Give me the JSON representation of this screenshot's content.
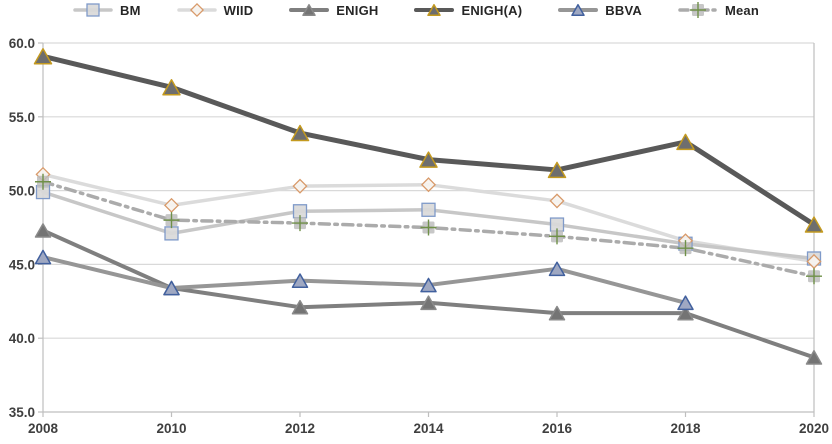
{
  "chart_data": {
    "type": "line",
    "title": "",
    "xlabel": "",
    "ylabel": "",
    "x_categories": [
      "2008",
      "2010",
      "2012",
      "2014",
      "2016",
      "2018",
      "2020"
    ],
    "ylim": [
      35,
      60
    ],
    "ytick_step": 5,
    "ytick_labels": [
      "60.0",
      "55.0",
      "50.0",
      "45.0",
      "40.0",
      "35.0"
    ],
    "grid": true,
    "legend_position": "top",
    "axis_text_color": "#3f3f3f",
    "gridline_color": "#d9d9d9",
    "axis_line_color": "#bfbfbf",
    "series": [
      {
        "name": "BM",
        "values": [
          49.9,
          47.1,
          48.6,
          48.7,
          47.7,
          46.4,
          45.4
        ],
        "line_color": "#c7c7c7",
        "line_width": 3.5,
        "dash": false,
        "marker": "square",
        "marker_fill": "#d9d9d9",
        "marker_stroke": "#7f9ac9",
        "marker_size": 13
      },
      {
        "name": "WIID",
        "values": [
          51.1,
          49.0,
          50.3,
          50.4,
          49.3,
          46.6,
          45.2
        ],
        "line_color": "#dbdbdb",
        "line_width": 3.5,
        "dash": false,
        "marker": "diamond",
        "marker_fill": "#f7f4f0",
        "marker_stroke": "#d89a6a",
        "marker_size": 13
      },
      {
        "name": "ENIGH",
        "values": [
          47.3,
          43.4,
          42.1,
          42.4,
          41.7,
          41.7,
          38.7
        ],
        "line_color": "#7f7f7f",
        "line_width": 4,
        "dash": false,
        "marker": "triangle",
        "marker_fill": "#747474",
        "marker_stroke": "#8a8a8a",
        "marker_size": 15
      },
      {
        "name": "ENIGH(A)",
        "values": [
          59.1,
          57.0,
          53.9,
          52.1,
          51.4,
          53.3,
          47.7
        ],
        "line_color": "#595959",
        "line_width": 5,
        "dash": false,
        "marker": "triangle",
        "marker_fill": "#6e6e6e",
        "marker_stroke": "#c49a1f",
        "marker_size": 17
      },
      {
        "name": "BBVA",
        "values": [
          45.5,
          43.4,
          43.9,
          43.6,
          44.7,
          42.4,
          null
        ],
        "line_color": "#969696",
        "line_width": 4,
        "dash": false,
        "marker": "triangle",
        "marker_fill": "#9fa8c2",
        "marker_stroke": "#41609e",
        "marker_size": 15
      },
      {
        "name": "Mean",
        "values": [
          50.6,
          48.0,
          47.8,
          47.5,
          46.9,
          46.1,
          44.2
        ],
        "line_color": "#ababab",
        "line_width": 3.5,
        "dash": true,
        "marker": "plus-square",
        "marker_fill": "#bdbdbd",
        "marker_stroke": "#6f9048",
        "marker_size": 12
      }
    ]
  }
}
